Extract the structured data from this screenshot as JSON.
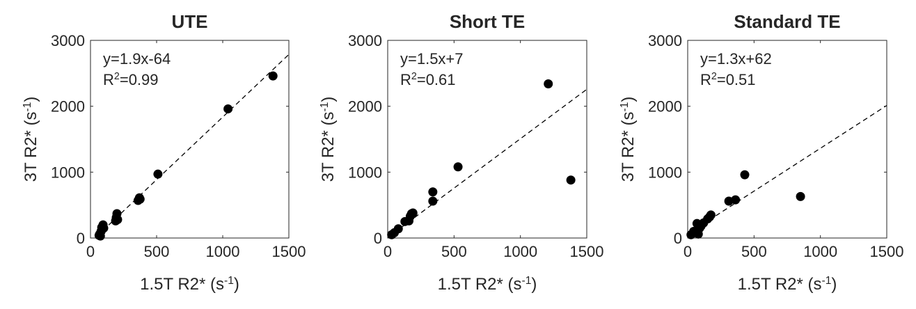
{
  "chart_data": [
    {
      "type": "scatter",
      "title": "UTE",
      "xlabel": "1.5T R2* (s⁻¹)",
      "ylabel": "3T R2* (s⁻¹)",
      "xlim": [
        0,
        1500
      ],
      "ylim": [
        0,
        3000
      ],
      "xticks": [
        "0",
        "500",
        "1000",
        "1500"
      ],
      "yticks": [
        "0",
        "1000",
        "2000",
        "3000"
      ],
      "grid": false,
      "equation": "y=1.9x-64",
      "r2": "R²=0.99",
      "fit": {
        "slope": 1.9,
        "intercept": -64
      },
      "points": [
        {
          "x": 65,
          "y": 40
        },
        {
          "x": 70,
          "y": 60
        },
        {
          "x": 75,
          "y": 30
        },
        {
          "x": 80,
          "y": 100
        },
        {
          "x": 85,
          "y": 160
        },
        {
          "x": 95,
          "y": 200
        },
        {
          "x": 100,
          "y": 150
        },
        {
          "x": 190,
          "y": 260
        },
        {
          "x": 195,
          "y": 310
        },
        {
          "x": 200,
          "y": 370
        },
        {
          "x": 205,
          "y": 280
        },
        {
          "x": 360,
          "y": 570
        },
        {
          "x": 370,
          "y": 610
        },
        {
          "x": 375,
          "y": 590
        },
        {
          "x": 510,
          "y": 970
        },
        {
          "x": 1040,
          "y": 1960
        },
        {
          "x": 1380,
          "y": 2460
        }
      ]
    },
    {
      "type": "scatter",
      "title": "Short TE",
      "xlabel": "1.5T R2* (s⁻¹)",
      "ylabel": "3T R2* (s⁻¹)",
      "xlim": [
        0,
        1500
      ],
      "ylim": [
        0,
        3000
      ],
      "xticks": [
        "0",
        "500",
        "1000",
        "1500"
      ],
      "yticks": [
        "0",
        "1000",
        "2000",
        "3000"
      ],
      "grid": false,
      "equation": "y=1.5x+7",
      "r2": "R²=0.61",
      "fit": {
        "slope": 1.5,
        "intercept": 7
      },
      "points": [
        {
          "x": 30,
          "y": 50
        },
        {
          "x": 50,
          "y": 80
        },
        {
          "x": 80,
          "y": 140
        },
        {
          "x": 130,
          "y": 250
        },
        {
          "x": 160,
          "y": 260
        },
        {
          "x": 170,
          "y": 330
        },
        {
          "x": 180,
          "y": 370
        },
        {
          "x": 190,
          "y": 380
        },
        {
          "x": 340,
          "y": 560
        },
        {
          "x": 340,
          "y": 700
        },
        {
          "x": 530,
          "y": 1080
        },
        {
          "x": 1210,
          "y": 2340
        },
        {
          "x": 1380,
          "y": 880
        }
      ]
    },
    {
      "type": "scatter",
      "title": "Standard TE",
      "xlabel": "1.5T R2* (s⁻¹)",
      "ylabel": "3T R2* (s⁻¹)",
      "xlim": [
        0,
        1500
      ],
      "ylim": [
        0,
        3000
      ],
      "xticks": [
        "0",
        "500",
        "1000",
        "1500"
      ],
      "yticks": [
        "0",
        "1000",
        "2000",
        "3000"
      ],
      "grid": false,
      "equation": "y=1.3x+62",
      "r2": "R²=0.51",
      "fit": {
        "slope": 1.3,
        "intercept": 62
      },
      "points": [
        {
          "x": 25,
          "y": 50
        },
        {
          "x": 45,
          "y": 100
        },
        {
          "x": 70,
          "y": 220
        },
        {
          "x": 80,
          "y": 60
        },
        {
          "x": 90,
          "y": 150
        },
        {
          "x": 100,
          "y": 180
        },
        {
          "x": 120,
          "y": 230
        },
        {
          "x": 150,
          "y": 290
        },
        {
          "x": 165,
          "y": 320
        },
        {
          "x": 175,
          "y": 350
        },
        {
          "x": 310,
          "y": 560
        },
        {
          "x": 360,
          "y": 580
        },
        {
          "x": 430,
          "y": 960
        },
        {
          "x": 850,
          "y": 630
        }
      ]
    }
  ]
}
